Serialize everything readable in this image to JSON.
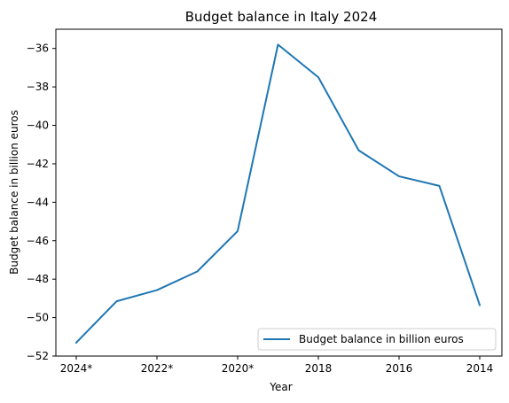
{
  "chart_data": {
    "type": "line",
    "title": "Budget balance in Italy 2024",
    "xlabel": "Year",
    "ylabel": "Budget balance in billion euros",
    "x": [
      "2024*",
      "2023*",
      "2022*",
      "2021*",
      "2020*",
      "2019",
      "2018",
      "2017",
      "2016",
      "2015",
      "2014"
    ],
    "xticks": [
      "2024*",
      "2022*",
      "2020*",
      "2018",
      "2016",
      "2014"
    ],
    "yticks": [
      -52,
      -50,
      -48,
      -46,
      -44,
      -42,
      -40,
      -38,
      -36
    ],
    "ylim": [
      -52,
      -35
    ],
    "grid": false,
    "legend_position": "bottom-right",
    "series": [
      {
        "name": "Budget balance in billion euros",
        "color": "#1f77b4",
        "values": [
          -51.3,
          -49.15,
          -48.57,
          -47.6,
          -45.5,
          -35.8,
          -37.5,
          -41.3,
          -42.65,
          -43.15,
          -49.35
        ]
      }
    ]
  }
}
